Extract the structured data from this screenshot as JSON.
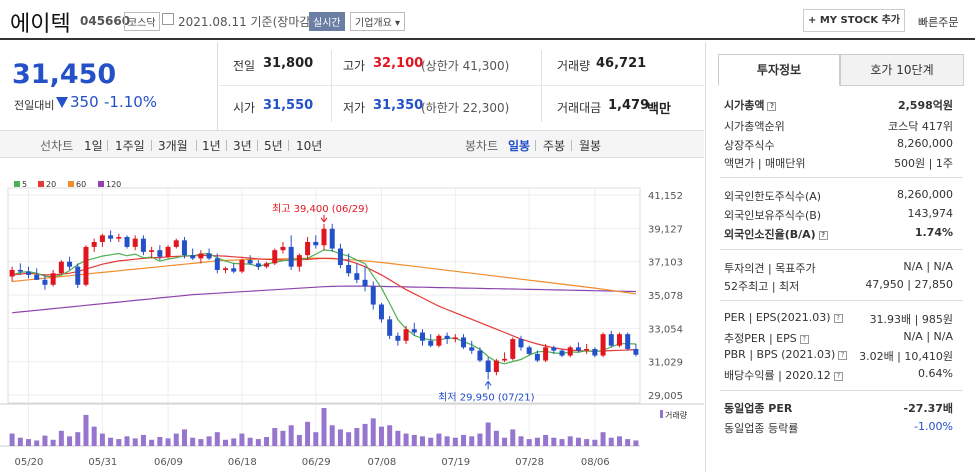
{
  "header": {
    "title": "에이텍",
    "code": "045660",
    "market": "코스닥",
    "date": "2021.08.11 기준(장마감)",
    "realtime": "실시간",
    "corp_info": "기업개요 ▾",
    "mystock": "+ MY STOCK 추가",
    "quick_order": "빠른주문"
  },
  "price": {
    "current": "31,450",
    "change_label": "전일대비",
    "change": "350",
    "change_pct": "-1.10%"
  },
  "info": {
    "prev_label": "전일",
    "prev": "31,800",
    "high_label": "고가",
    "high": "32,100",
    "upper_limit": "(상한가 41,300)",
    "volume_label": "거래량",
    "volume": "46,721",
    "open_label": "시가",
    "open": "31,550",
    "low_label": "저가",
    "low": "31,350",
    "lower_limit": "(하한가 22,300)",
    "amount_label": "거래대금",
    "amount": "1,479",
    "amount_unit": "백만"
  },
  "period": {
    "line_label": "선차트",
    "line_opts": [
      "1일",
      "1주일",
      "3개월",
      "1년",
      "3년",
      "5년",
      "10년"
    ],
    "candle_label": "봉차트",
    "candle_opts": [
      "일봉",
      "주봉",
      "월봉"
    ],
    "candle_selected": "일봉"
  },
  "colors": {
    "up": "#e0151f",
    "down": "#2450c8",
    "ma5": "#4caf50",
    "ma20": "#e53935",
    "ma60": "#f08c2a",
    "ma120": "#8e44ad",
    "volume": "#9575cd"
  },
  "chart_data": {
    "type": "candlestick",
    "legend": [
      "5",
      "20",
      "60",
      "120"
    ],
    "y_ticks": [
      "41,152",
      "39,127",
      "37,103",
      "35,078",
      "33,054",
      "31,029",
      "29,005"
    ],
    "ylim": [
      29005,
      41152
    ],
    "x_ticks": [
      "05/20",
      "05/31",
      "06/09",
      "06/18",
      "06/29",
      "07/08",
      "07/19",
      "07/28",
      "08/06"
    ],
    "high_annotation": "최고 39,400 (06/29)",
    "low_annotation": "최저 29,950 (07/21)",
    "volume_label": "거래량",
    "candles": [
      [
        36200,
        36800,
        35900,
        36600
      ],
      [
        36600,
        37000,
        36300,
        36500
      ],
      [
        36500,
        36800,
        36100,
        36300
      ],
      [
        36300,
        36700,
        36000,
        36000
      ],
      [
        36000,
        36300,
        35400,
        35700
      ],
      [
        35700,
        36600,
        35600,
        36400
      ],
      [
        36400,
        37200,
        36300,
        37100
      ],
      [
        37100,
        37400,
        36600,
        36800
      ],
      [
        36800,
        37000,
        35500,
        35700
      ],
      [
        35700,
        38100,
        35600,
        38000
      ],
      [
        38000,
        38500,
        37700,
        38300
      ],
      [
        38300,
        38800,
        38000,
        38700
      ],
      [
        38700,
        39000,
        38300,
        38500
      ],
      [
        38500,
        38800,
        38300,
        38600
      ],
      [
        38600,
        38700,
        37900,
        38000
      ],
      [
        38000,
        38700,
        37800,
        38500
      ],
      [
        38500,
        38700,
        37500,
        37700
      ],
      [
        37700,
        38000,
        37300,
        37800
      ],
      [
        37800,
        38100,
        37200,
        37400
      ],
      [
        37400,
        38100,
        37300,
        38000
      ],
      [
        38000,
        38500,
        37900,
        38400
      ],
      [
        38400,
        38600,
        37300,
        37500
      ],
      [
        37500,
        37900,
        37200,
        37300
      ],
      [
        37300,
        37800,
        37000,
        37600
      ],
      [
        37600,
        37900,
        37200,
        37300
      ],
      [
        37300,
        37600,
        36400,
        36600
      ],
      [
        36600,
        36800,
        36400,
        36700
      ],
      [
        36700,
        37000,
        36400,
        36500
      ],
      [
        36500,
        37300,
        36400,
        37200
      ],
      [
        37200,
        37500,
        36900,
        37000
      ],
      [
        37000,
        37200,
        36600,
        36800
      ],
      [
        36800,
        37100,
        36700,
        37000
      ],
      [
        37000,
        37900,
        36900,
        37800
      ],
      [
        37800,
        38300,
        37600,
        38000
      ],
      [
        38000,
        38700,
        36600,
        36800
      ],
      [
        36800,
        37600,
        36500,
        37500
      ],
      [
        37500,
        38600,
        37200,
        38300
      ],
      [
        38300,
        38700,
        37900,
        38100
      ],
      [
        38100,
        39400,
        37800,
        39100
      ],
      [
        39100,
        39400,
        37700,
        37900
      ],
      [
        37900,
        38200,
        36700,
        36900
      ],
      [
        36900,
        37600,
        36200,
        36400
      ],
      [
        36400,
        37000,
        35800,
        36000
      ],
      [
        36000,
        36800,
        35300,
        35600
      ],
      [
        35600,
        35900,
        34200,
        34500
      ],
      [
        34500,
        34600,
        33400,
        33600
      ],
      [
        33600,
        33800,
        32400,
        32600
      ],
      [
        32600,
        32800,
        32000,
        32300
      ],
      [
        32300,
        33200,
        32100,
        33000
      ],
      [
        33000,
        33400,
        32600,
        32800
      ],
      [
        32800,
        33000,
        32000,
        32300
      ],
      [
        32300,
        32700,
        31900,
        32000
      ],
      [
        32000,
        32700,
        31900,
        32600
      ],
      [
        32600,
        32800,
        32100,
        32400
      ],
      [
        32400,
        32700,
        32200,
        32500
      ],
      [
        32500,
        32700,
        31800,
        31900
      ],
      [
        31900,
        32300,
        31500,
        31700
      ],
      [
        31700,
        31900,
        31000,
        31100
      ],
      [
        31100,
        31300,
        29950,
        30400
      ],
      [
        30400,
        31200,
        30200,
        31100
      ],
      [
        31100,
        31600,
        31000,
        31200
      ],
      [
        31200,
        32500,
        31100,
        32400
      ],
      [
        32400,
        32600,
        31700,
        31900
      ],
      [
        31900,
        32000,
        31400,
        31500
      ],
      [
        31500,
        31700,
        31000,
        31100
      ],
      [
        31100,
        32100,
        31000,
        31900
      ],
      [
        31900,
        32000,
        31500,
        31700
      ],
      [
        31700,
        31800,
        31300,
        31400
      ],
      [
        31400,
        32000,
        31300,
        31900
      ],
      [
        31900,
        32200,
        31600,
        31700
      ],
      [
        31700,
        32100,
        31500,
        31800
      ],
      [
        31800,
        31900,
        31300,
        31400
      ],
      [
        31400,
        32800,
        31300,
        32700
      ],
      [
        32700,
        32900,
        31900,
        32000
      ],
      [
        32000,
        32800,
        31900,
        32700
      ],
      [
        32700,
        32800,
        31700,
        31800
      ],
      [
        31800,
        32100,
        31350,
        31450
      ]
    ],
    "ma5": [
      36300,
      36450,
      36500,
      36400,
      36220,
      36180,
      36300,
      36560,
      36940,
      37180,
      37300,
      37440,
      37520,
      37600,
      37460,
      37560,
      37340,
      37380,
      37140,
      37260,
      37340,
      37480,
      37440,
      37560,
      37600,
      37340,
      37140,
      37000,
      36960,
      36960,
      36800,
      36960,
      37060,
      37160,
      37200,
      37260,
      37300,
      37560,
      37820,
      37760,
      37580,
      37440,
      37200,
      36980,
      36240,
      35500,
      34560,
      33580,
      33020,
      32620,
      32440,
      32360,
      32340,
      32460,
      32460,
      32240,
      32060,
      31780,
      31340,
      31020,
      30900,
      31040,
      31160,
      31420,
      31620,
      31660,
      31560,
      31520,
      31620,
      31600,
      31700,
      31620,
      31720,
      31920,
      32120,
      32120,
      32100
    ],
    "ma20": [
      36300,
      36350,
      36400,
      36350,
      36300,
      36300,
      36350,
      36400,
      36500,
      36650,
      36800,
      36950,
      37050,
      37150,
      37200,
      37250,
      37300,
      37350,
      37350,
      37400,
      37420,
      37440,
      37460,
      37480,
      37480,
      37460,
      37440,
      37400,
      37360,
      37320,
      37280,
      37240,
      37220,
      37200,
      37200,
      37220,
      37240,
      37280,
      37300,
      37300,
      37250,
      37150,
      37000,
      36800,
      36550,
      36300,
      36000,
      35700,
      35400,
      35150,
      34900,
      34650,
      34400,
      34200,
      34000,
      33800,
      33600,
      33400,
      33200,
      33000,
      32800,
      32600,
      32400,
      32250,
      32100,
      31980,
      31870,
      31790,
      31740,
      31700,
      31680,
      31670,
      31680,
      31700,
      31720,
      31740,
      31760
    ],
    "ma60": [
      35900,
      35950,
      36000,
      36050,
      36100,
      36150,
      36200,
      36250,
      36300,
      36350,
      36400,
      36450,
      36500,
      36550,
      36600,
      36650,
      36700,
      36750,
      36800,
      36850,
      36900,
      36950,
      37000,
      37050,
      37100,
      37150,
      37180,
      37200,
      37220,
      37240,
      37250,
      37260,
      37270,
      37280,
      37290,
      37300,
      37310,
      37320,
      37300,
      37280,
      37250,
      37220,
      37190,
      37150,
      37100,
      37050,
      37000,
      36940,
      36880,
      36820,
      36760,
      36700,
      36640,
      36580,
      36520,
      36460,
      36400,
      36340,
      36280,
      36220,
      36160,
      36100,
      36040,
      35980,
      35920,
      35860,
      35800,
      35740,
      35680,
      35620,
      35560,
      35500,
      35430,
      35360,
      35290,
      35220,
      35150
    ],
    "ma120": [
      34000,
      34050,
      34100,
      34150,
      34200,
      34250,
      34300,
      34350,
      34400,
      34450,
      34500,
      34550,
      34600,
      34650,
      34700,
      34750,
      34800,
      34850,
      34900,
      34950,
      35000,
      35050,
      35100,
      35130,
      35160,
      35190,
      35220,
      35250,
      35280,
      35310,
      35340,
      35370,
      35400,
      35430,
      35460,
      35490,
      35520,
      35550,
      35580,
      35600,
      35610,
      35620,
      35620,
      35620,
      35610,
      35600,
      35590,
      35580,
      35570,
      35560,
      35550,
      35540,
      35530,
      35520,
      35510,
      35500,
      35490,
      35480,
      35470,
      35460,
      35450,
      35440,
      35430,
      35420,
      35410,
      35400,
      35390,
      35380,
      35370,
      35360,
      35350,
      35340,
      35330,
      35320,
      35310,
      35300,
      35290
    ],
    "volumes": [
      18,
      12,
      10,
      8,
      15,
      9,
      22,
      14,
      20,
      45,
      28,
      18,
      12,
      10,
      14,
      11,
      16,
      9,
      13,
      11,
      18,
      24,
      12,
      10,
      14,
      20,
      9,
      11,
      18,
      12,
      10,
      13,
      26,
      22,
      30,
      16,
      35,
      20,
      55,
      30,
      24,
      20,
      26,
      32,
      40,
      28,
      30,
      22,
      18,
      16,
      14,
      12,
      18,
      14,
      12,
      16,
      14,
      18,
      34,
      22,
      12,
      24,
      14,
      10,
      12,
      16,
      12,
      10,
      14,
      12,
      10,
      9,
      20,
      12,
      14,
      10,
      8
    ]
  },
  "right_panel": {
    "tabs": [
      "투자정보",
      "호가 10단계"
    ],
    "rows": [
      {
        "label": "시가총액",
        "value": "2,598억원",
        "bold": true
      },
      {
        "label": "시가총액순위",
        "value": "코스닥 417위"
      },
      {
        "label": "상장주식수",
        "value": "8,260,000"
      },
      {
        "label": "액면가 | 매매단위",
        "value": "500원 | 1주"
      },
      {
        "label": "외국인한도주식수(A)",
        "value": "8,260,000"
      },
      {
        "label": "외국인보유주식수(B)",
        "value": "143,974"
      },
      {
        "label": "외국인소진율(B/A)",
        "value": "1.74%",
        "bold": true
      },
      {
        "label": "투자의견 | 목표주가",
        "value": "N/A | N/A"
      },
      {
        "label": "52주최고 | 최저",
        "value": "47,950 | 27,850"
      },
      {
        "label": "PER | EPS(2021.03)",
        "value": "31.93배 | 985원"
      },
      {
        "label": "추정PER | EPS",
        "value": "N/A | N/A"
      },
      {
        "label": "PBR | BPS (2021.03)",
        "value": "3.02배 | 10,410원"
      },
      {
        "label": "배당수익률 | 2020.12",
        "value": "0.64%"
      },
      {
        "label": "동일업종 PER",
        "value": "-27.37배",
        "bold": true
      },
      {
        "label": "동일업종 등락률",
        "value": "-1.00%"
      }
    ]
  }
}
